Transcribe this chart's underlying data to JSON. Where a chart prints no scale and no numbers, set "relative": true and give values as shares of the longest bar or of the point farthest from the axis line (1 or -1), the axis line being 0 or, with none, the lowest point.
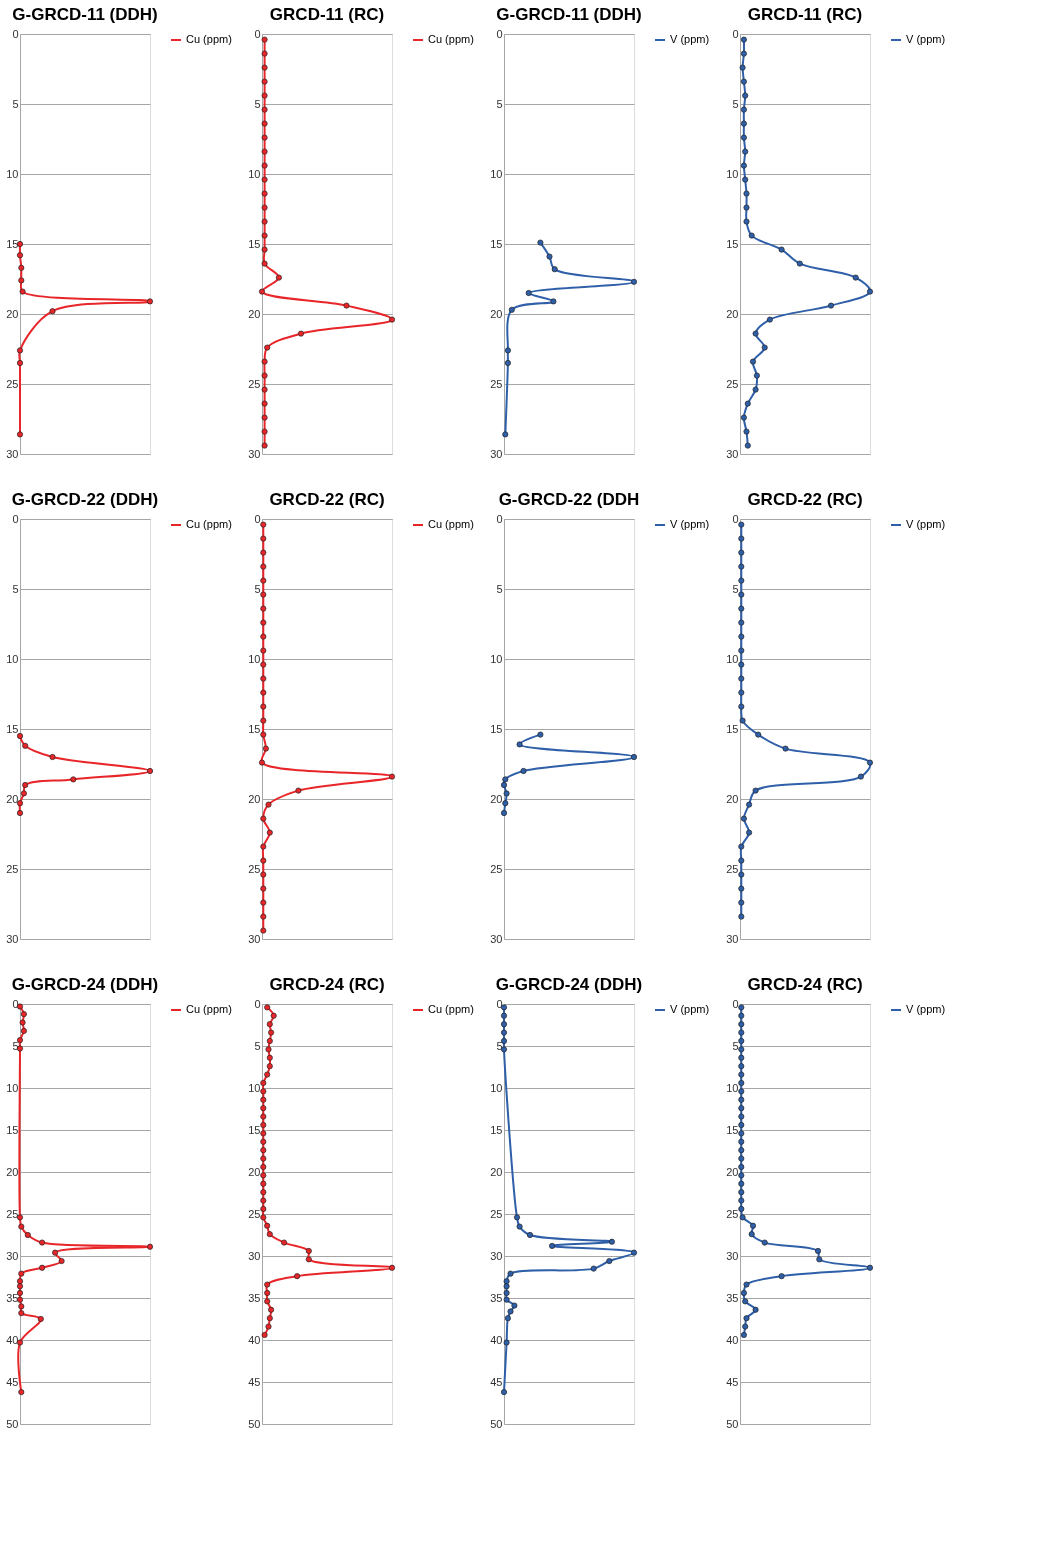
{
  "chart_data": [
    {
      "type": "line",
      "title": "G-GRCD-11 (DDH)",
      "orientation": "horizontal",
      "relative": true,
      "legend": "right",
      "grid": "y",
      "marker": "circle",
      "ylim": [
        30,
        0
      ],
      "yticks": [
        0,
        5,
        10,
        15,
        20,
        25,
        30
      ],
      "x": [
        15,
        15.8,
        16.7,
        17.6,
        18.4,
        19.1,
        19.8,
        22.6,
        23.5,
        28.6
      ],
      "series": [
        {
          "name": "Cu (ppm)",
          "color": "#e8262a",
          "values": [
            0,
            0,
            0.01,
            0.01,
            0.02,
            1,
            0.25,
            0,
            0,
            0
          ]
        }
      ]
    },
    {
      "type": "line",
      "title": "GRCD-11 (RC)",
      "orientation": "horizontal",
      "relative": true,
      "legend": "right",
      "grid": "y",
      "marker": "circle",
      "ylim": [
        30,
        0
      ],
      "yticks": [
        0,
        5,
        10,
        15,
        20,
        25,
        30
      ],
      "x": [
        0.4,
        1.4,
        2.4,
        3.4,
        4.4,
        5.4,
        6.4,
        7.4,
        8.4,
        9.4,
        10.4,
        11.4,
        12.4,
        13.4,
        14.4,
        15.4,
        16.4,
        17.4,
        18.4,
        19.4,
        20.4,
        21.4,
        22.4,
        23.4,
        24.4,
        25.4,
        26.4,
        27.4,
        28.4,
        29.4
      ],
      "series": [
        {
          "name": "Cu (ppm)",
          "color": "#e8262a",
          "values": [
            0.02,
            0.02,
            0.02,
            0.02,
            0.02,
            0.02,
            0.02,
            0.02,
            0.02,
            0.02,
            0.02,
            0.02,
            0.02,
            0.02,
            0.02,
            0.02,
            0.02,
            0.13,
            0,
            0.65,
            1,
            0.3,
            0.04,
            0.02,
            0.02,
            0.02,
            0.02,
            0.02,
            0.02,
            0.02
          ]
        }
      ]
    },
    {
      "type": "line",
      "title": "G-GRCD-11 (DDH)",
      "orientation": "horizontal",
      "relative": true,
      "legend": "right",
      "grid": "y",
      "marker": "circle",
      "ylim": [
        30,
        0
      ],
      "yticks": [
        0,
        5,
        10,
        15,
        20,
        25,
        30
      ],
      "x": [
        14.9,
        15.9,
        16.8,
        17.7,
        18.5,
        19.1,
        19.7,
        22.6,
        23.5,
        28.6
      ],
      "series": [
        {
          "name": "V (ppm)",
          "color": "#2e5fa8",
          "values": [
            0.28,
            0.35,
            0.39,
            1,
            0.19,
            0.38,
            0.06,
            0.03,
            0.03,
            0.01
          ]
        }
      ]
    },
    {
      "type": "line",
      "title": "GRCD-11 (RC)",
      "orientation": "horizontal",
      "relative": true,
      "legend": "right",
      "grid": "y",
      "marker": "circle",
      "ylim": [
        30,
        0
      ],
      "yticks": [
        0,
        5,
        10,
        15,
        20,
        25,
        30
      ],
      "x": [
        0.4,
        1.4,
        2.4,
        3.4,
        4.4,
        5.4,
        6.4,
        7.4,
        8.4,
        9.4,
        10.4,
        11.4,
        12.4,
        13.4,
        14.4,
        15.4,
        16.4,
        17.4,
        18.4,
        19.4,
        20.4,
        21.4,
        22.4,
        23.4,
        24.4,
        25.4,
        26.4,
        27.4,
        28.4,
        29.4
      ],
      "series": [
        {
          "name": "V (ppm)",
          "color": "#2e5fa8",
          "values": [
            0.03,
            0.03,
            0.02,
            0.03,
            0.04,
            0.03,
            0.03,
            0.03,
            0.04,
            0.03,
            0.04,
            0.05,
            0.05,
            0.05,
            0.09,
            0.32,
            0.46,
            0.89,
            1,
            0.7,
            0.23,
            0.12,
            0.19,
            0.1,
            0.13,
            0.12,
            0.06,
            0.03,
            0.05,
            0.06
          ]
        }
      ]
    },
    {
      "type": "line",
      "title": "G-GRCD-22 (DDH)",
      "orientation": "horizontal",
      "relative": true,
      "legend": "right",
      "grid": "y",
      "marker": "circle",
      "ylim": [
        30,
        0
      ],
      "yticks": [
        0,
        5,
        10,
        15,
        20,
        25,
        30
      ],
      "x": [
        15.5,
        16.2,
        17,
        18,
        18.6,
        19,
        19.6,
        20.3,
        21
      ],
      "series": [
        {
          "name": "Cu (ppm)",
          "color": "#e8262a",
          "values": [
            0,
            0.04,
            0.25,
            1,
            0.41,
            0.04,
            0.03,
            0,
            0
          ]
        }
      ]
    },
    {
      "type": "line",
      "title": "GRCD-22 (RC)",
      "orientation": "horizontal",
      "relative": true,
      "legend": "right",
      "grid": "y",
      "marker": "circle",
      "ylim": [
        30,
        0
      ],
      "yticks": [
        0,
        5,
        10,
        15,
        20,
        25,
        30
      ],
      "x": [
        0.4,
        1.4,
        2.4,
        3.4,
        4.4,
        5.4,
        6.4,
        7.4,
        8.4,
        9.4,
        10.4,
        11.4,
        12.4,
        13.4,
        14.4,
        15.4,
        16.4,
        17.4,
        18.4,
        19.4,
        20.4,
        21.4,
        22.4,
        23.4,
        24.4,
        25.4,
        26.4,
        27.4,
        28.4,
        29.4
      ],
      "series": [
        {
          "name": "Cu (ppm)",
          "color": "#e8262a",
          "values": [
            0.01,
            0.01,
            0.01,
            0.01,
            0.01,
            0.01,
            0.01,
            0.01,
            0.01,
            0.01,
            0.01,
            0.01,
            0.01,
            0.01,
            0.01,
            0.01,
            0.03,
            0,
            1,
            0.28,
            0.05,
            0.01,
            0.06,
            0.01,
            0.01,
            0.01,
            0.01,
            0.01,
            0.01,
            0.01
          ]
        }
      ]
    },
    {
      "type": "line",
      "title": "G-GRCD-22 (DDH",
      "orientation": "horizontal",
      "relative": true,
      "legend": "right",
      "grid": "y",
      "marker": "circle",
      "ylim": [
        30,
        0
      ],
      "yticks": [
        0,
        5,
        10,
        15,
        20,
        25,
        30
      ],
      "x": [
        15.4,
        16.1,
        17,
        18,
        18.6,
        19,
        19.6,
        20.3,
        21
      ],
      "series": [
        {
          "name": "V (ppm)",
          "color": "#2e5fa8",
          "values": [
            0.28,
            0.12,
            1,
            0.15,
            0.01,
            0,
            0.02,
            0.01,
            0
          ]
        }
      ]
    },
    {
      "type": "line",
      "title": "GRCD-22 (RC)",
      "orientation": "horizontal",
      "relative": true,
      "legend": "right",
      "grid": "y",
      "marker": "circle",
      "ylim": [
        30,
        0
      ],
      "yticks": [
        0,
        5,
        10,
        15,
        20,
        25,
        30
      ],
      "x": [
        0.4,
        1.4,
        2.4,
        3.4,
        4.4,
        5.4,
        6.4,
        7.4,
        8.4,
        9.4,
        10.4,
        11.4,
        12.4,
        13.4,
        14.4,
        15.4,
        16.4,
        17.4,
        18.4,
        19.4,
        20.4,
        21.4,
        22.4,
        23.4,
        24.4,
        25.4,
        26.4,
        27.4,
        28.4
      ],
      "series": [
        {
          "name": "V (ppm)",
          "color": "#2e5fa8",
          "values": [
            0.01,
            0.01,
            0.01,
            0.01,
            0.01,
            0.01,
            0.01,
            0.01,
            0.01,
            0.01,
            0.01,
            0.01,
            0.01,
            0.01,
            0.02,
            0.14,
            0.35,
            1,
            0.93,
            0.12,
            0.07,
            0.03,
            0.07,
            0.01,
            0.01,
            0.01,
            0.01,
            0.01,
            0.01
          ]
        }
      ]
    },
    {
      "type": "line",
      "title": "G-GRCD-24 (DDH)",
      "orientation": "horizontal",
      "relative": true,
      "legend": "right",
      "grid": "y",
      "marker": "circle",
      "ylim": [
        50,
        0
      ],
      "yticks": [
        0,
        5,
        10,
        15,
        20,
        25,
        30,
        35,
        40,
        45,
        50
      ],
      "x": [
        0.3,
        1.2,
        2.2,
        3.2,
        4.3,
        5.3,
        25.4,
        26.5,
        27.5,
        28.4,
        28.9,
        29.6,
        30.6,
        31.4,
        32.1,
        33,
        33.6,
        34.4,
        35.2,
        36,
        36.8,
        37.5,
        40.3,
        46.2
      ],
      "series": [
        {
          "name": "Cu (ppm)",
          "color": "#e8262a",
          "values": [
            0,
            0.03,
            0.02,
            0.03,
            0,
            0,
            0,
            0.01,
            0.06,
            0.17,
            1,
            0.27,
            0.32,
            0.17,
            0.01,
            0,
            0,
            0,
            0,
            0.01,
            0.01,
            0.16,
            0,
            0.01
          ]
        }
      ]
    },
    {
      "type": "line",
      "title": "GRCD-24 (RC)",
      "orientation": "horizontal",
      "relative": true,
      "legend": "right",
      "grid": "y",
      "marker": "circle",
      "ylim": [
        50,
        0
      ],
      "yticks": [
        0,
        5,
        10,
        15,
        20,
        25,
        30,
        35,
        40,
        45,
        50
      ],
      "x": [
        0.4,
        1.4,
        2.4,
        3.4,
        4.4,
        5.4,
        6.4,
        7.4,
        8.4,
        9.4,
        10.4,
        11.4,
        12.4,
        13.4,
        14.4,
        15.4,
        16.4,
        17.4,
        18.4,
        19.4,
        20.4,
        21.4,
        22.4,
        23.4,
        24.4,
        25.4,
        26.4,
        27.4,
        28.4,
        29.4,
        30.4,
        31.4,
        32.4,
        33.4,
        34.4,
        35.4,
        36.4,
        37.4,
        38.4,
        39.4
      ],
      "series": [
        {
          "name": "Cu (ppm)",
          "color": "#e8262a",
          "values": [
            0.04,
            0.09,
            0.06,
            0.07,
            0.06,
            0.05,
            0.06,
            0.06,
            0.04,
            0.01,
            0.01,
            0.01,
            0.01,
            0.01,
            0.01,
            0.01,
            0.01,
            0.01,
            0.01,
            0.01,
            0.01,
            0.01,
            0.01,
            0.01,
            0.01,
            0.01,
            0.04,
            0.06,
            0.17,
            0.36,
            0.36,
            1,
            0.27,
            0.04,
            0.04,
            0.04,
            0.07,
            0.06,
            0.05,
            0.02
          ]
        }
      ]
    },
    {
      "type": "line",
      "title": "G-GRCD-24 (DDH)",
      "orientation": "horizontal",
      "relative": true,
      "legend": "right",
      "grid": "y",
      "marker": "circle",
      "ylim": [
        50,
        0
      ],
      "yticks": [
        0,
        5,
        10,
        15,
        20,
        25,
        30,
        35,
        40,
        45,
        50
      ],
      "x": [
        0.4,
        1.4,
        2.4,
        3.4,
        4.4,
        5.4,
        25.4,
        26.5,
        27.5,
        28.3,
        28.8,
        29.6,
        30.6,
        31.5,
        32.1,
        33,
        33.6,
        34.4,
        35.2,
        35.9,
        36.6,
        37.4,
        40.3,
        46.2
      ],
      "series": [
        {
          "name": "V (ppm)",
          "color": "#2e5fa8",
          "values": [
            0,
            0,
            0,
            0,
            0,
            0,
            0.1,
            0.12,
            0.2,
            0.83,
            0.37,
            1,
            0.81,
            0.69,
            0.05,
            0.02,
            0.02,
            0.02,
            0.02,
            0.08,
            0.05,
            0.03,
            0.02,
            0
          ]
        }
      ]
    },
    {
      "type": "line",
      "title": "GRCD-24 (RC)",
      "orientation": "horizontal",
      "relative": true,
      "legend": "right",
      "grid": "y",
      "marker": "circle",
      "ylim": [
        50,
        0
      ],
      "yticks": [
        0,
        5,
        10,
        15,
        20,
        25,
        30,
        35,
        40,
        45,
        50
      ],
      "x": [
        0.4,
        1.4,
        2.4,
        3.4,
        4.4,
        5.4,
        6.4,
        7.4,
        8.4,
        9.4,
        10.4,
        11.4,
        12.4,
        13.4,
        14.4,
        15.4,
        16.4,
        17.4,
        18.4,
        19.4,
        20.4,
        21.4,
        22.4,
        23.4,
        24.4,
        25.4,
        26.4,
        27.4,
        28.4,
        29.4,
        30.4,
        31.4,
        32.4,
        33.4,
        34.4,
        35.4,
        36.4,
        37.4,
        38.4,
        39.4
      ],
      "series": [
        {
          "name": "V (ppm)",
          "color": "#2e5fa8",
          "values": [
            0.01,
            0.01,
            0.01,
            0.01,
            0.01,
            0.01,
            0.01,
            0.01,
            0.01,
            0.01,
            0.01,
            0.01,
            0.01,
            0.01,
            0.01,
            0.01,
            0.01,
            0.01,
            0.01,
            0.01,
            0.01,
            0.01,
            0.01,
            0.01,
            0.01,
            0.02,
            0.1,
            0.09,
            0.19,
            0.6,
            0.61,
            1,
            0.32,
            0.05,
            0.03,
            0.04,
            0.12,
            0.05,
            0.04,
            0.03
          ]
        }
      ]
    }
  ]
}
